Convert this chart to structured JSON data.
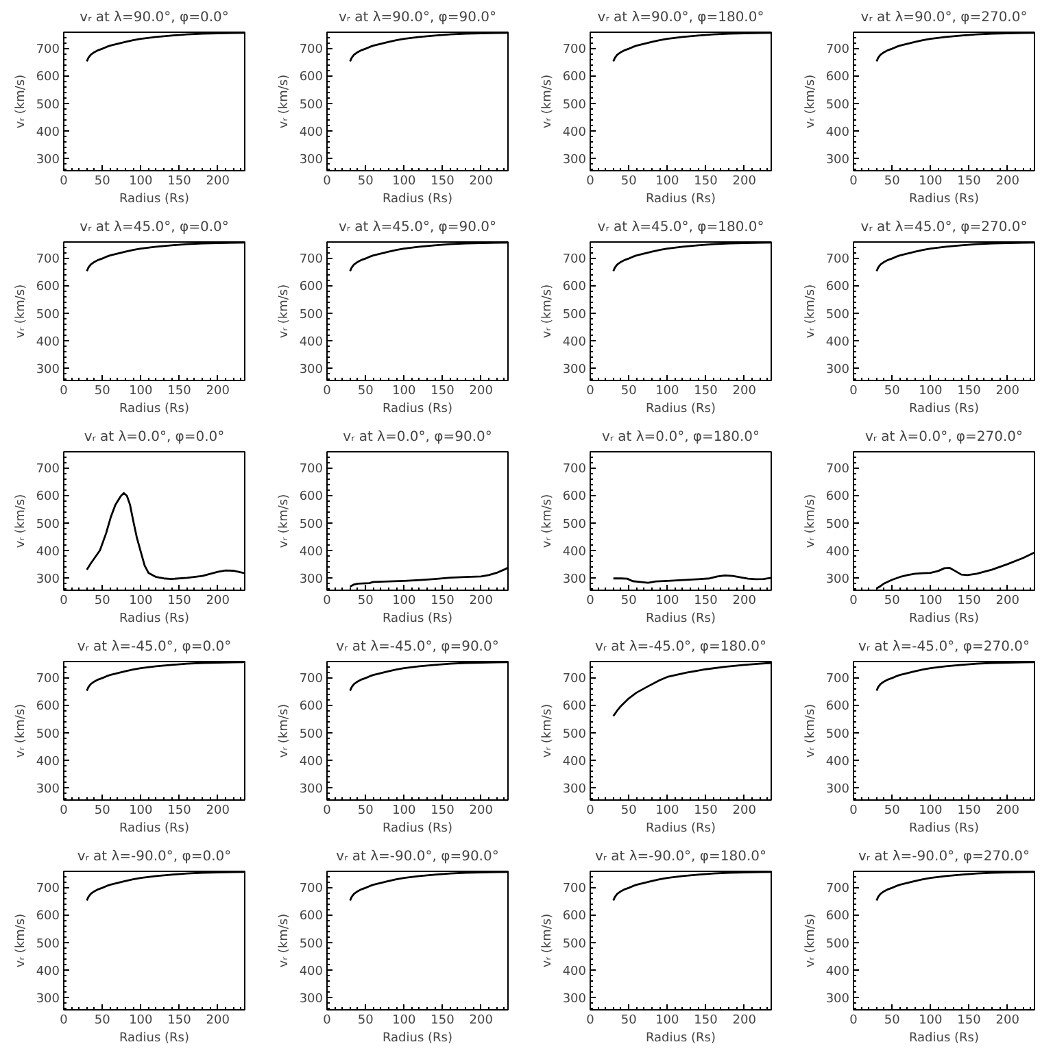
{
  "chart_data": [
    {
      "type": "line",
      "title": "vᵣ at λ=90.0°, φ=0.0°",
      "xlabel": "Radius (Rs)",
      "ylabel": "vᵣ (km/s)",
      "color": "#000000",
      "x": [
        30,
        32,
        35,
        40,
        45,
        50,
        55,
        60,
        70,
        80,
        90,
        100,
        120,
        140,
        160,
        180,
        200,
        220,
        235
      ],
      "values": [
        652,
        665,
        676,
        686,
        693,
        698,
        704,
        709,
        716,
        723,
        729,
        734,
        741,
        746,
        750,
        753,
        754,
        755,
        756
      ],
      "xlim": [
        0,
        235
      ],
      "ylim": [
        255,
        758
      ],
      "xticks": [
        0,
        50,
        100,
        150,
        200
      ],
      "yticks": [
        300,
        400,
        500,
        600,
        700
      ]
    },
    {
      "type": "line",
      "title": "vᵣ at λ=90.0°, φ=90.0°",
      "xlabel": "Radius (Rs)",
      "ylabel": "vᵣ (km/s)",
      "color": "#000000",
      "x": [
        30,
        32,
        35,
        40,
        45,
        50,
        55,
        60,
        70,
        80,
        90,
        100,
        120,
        140,
        160,
        180,
        200,
        220,
        235
      ],
      "values": [
        652,
        665,
        676,
        686,
        693,
        698,
        704,
        709,
        716,
        723,
        729,
        734,
        741,
        746,
        750,
        753,
        754,
        755,
        756
      ],
      "xlim": [
        0,
        235
      ],
      "ylim": [
        255,
        758
      ],
      "xticks": [
        0,
        50,
        100,
        150,
        200
      ],
      "yticks": [
        300,
        400,
        500,
        600,
        700
      ]
    },
    {
      "type": "line",
      "title": "vᵣ at λ=90.0°, φ=180.0°",
      "xlabel": "Radius (Rs)",
      "ylabel": "vᵣ (km/s)",
      "color": "#000000",
      "x": [
        30,
        32,
        35,
        40,
        45,
        50,
        55,
        60,
        70,
        80,
        90,
        100,
        120,
        140,
        160,
        180,
        200,
        220,
        235
      ],
      "values": [
        652,
        665,
        676,
        686,
        693,
        698,
        704,
        709,
        716,
        723,
        729,
        734,
        741,
        746,
        750,
        753,
        754,
        755,
        756
      ],
      "xlim": [
        0,
        235
      ],
      "ylim": [
        255,
        758
      ],
      "xticks": [
        0,
        50,
        100,
        150,
        200
      ],
      "yticks": [
        300,
        400,
        500,
        600,
        700
      ]
    },
    {
      "type": "line",
      "title": "vᵣ at λ=90.0°, φ=270.0°",
      "xlabel": "Radius (Rs)",
      "ylabel": "vᵣ (km/s)",
      "color": "#000000",
      "x": [
        30,
        32,
        35,
        40,
        45,
        50,
        55,
        60,
        70,
        80,
        90,
        100,
        120,
        140,
        160,
        180,
        200,
        220,
        235
      ],
      "values": [
        652,
        665,
        676,
        686,
        693,
        698,
        704,
        709,
        716,
        723,
        729,
        734,
        741,
        746,
        750,
        753,
        754,
        755,
        756
      ],
      "xlim": [
        0,
        235
      ],
      "ylim": [
        255,
        758
      ],
      "xticks": [
        0,
        50,
        100,
        150,
        200
      ],
      "yticks": [
        300,
        400,
        500,
        600,
        700
      ]
    },
    {
      "type": "line",
      "title": "vᵣ at λ=45.0°, φ=0.0°",
      "xlabel": "Radius (Rs)",
      "ylabel": "vᵣ (km/s)",
      "color": "#000000",
      "x": [
        30,
        32,
        35,
        40,
        45,
        50,
        55,
        60,
        70,
        80,
        90,
        100,
        120,
        140,
        160,
        180,
        200,
        220,
        235
      ],
      "values": [
        652,
        665,
        676,
        686,
        693,
        698,
        704,
        709,
        716,
        723,
        729,
        734,
        741,
        746,
        750,
        753,
        754,
        755,
        756
      ],
      "xlim": [
        0,
        235
      ],
      "ylim": [
        255,
        758
      ],
      "xticks": [
        0,
        50,
        100,
        150,
        200
      ],
      "yticks": [
        300,
        400,
        500,
        600,
        700
      ]
    },
    {
      "type": "line",
      "title": "vᵣ at λ=45.0°, φ=90.0°",
      "xlabel": "Radius (Rs)",
      "ylabel": "vᵣ (km/s)",
      "color": "#000000",
      "x": [
        30,
        32,
        35,
        40,
        45,
        50,
        55,
        60,
        70,
        80,
        90,
        100,
        120,
        140,
        160,
        180,
        200,
        220,
        235
      ],
      "values": [
        652,
        665,
        676,
        686,
        693,
        698,
        704,
        709,
        716,
        723,
        729,
        734,
        741,
        746,
        750,
        753,
        754,
        755,
        756
      ],
      "xlim": [
        0,
        235
      ],
      "ylim": [
        255,
        758
      ],
      "xticks": [
        0,
        50,
        100,
        150,
        200
      ],
      "yticks": [
        300,
        400,
        500,
        600,
        700
      ]
    },
    {
      "type": "line",
      "title": "vᵣ at λ=45.0°, φ=180.0°",
      "xlabel": "Radius (Rs)",
      "ylabel": "vᵣ (km/s)",
      "color": "#000000",
      "x": [
        30,
        32,
        35,
        40,
        45,
        50,
        55,
        60,
        70,
        80,
        90,
        100,
        120,
        140,
        160,
        180,
        200,
        220,
        235
      ],
      "values": [
        652,
        665,
        676,
        686,
        693,
        698,
        704,
        709,
        716,
        723,
        729,
        734,
        741,
        746,
        750,
        753,
        754,
        755,
        756
      ],
      "xlim": [
        0,
        235
      ],
      "ylim": [
        255,
        758
      ],
      "xticks": [
        0,
        50,
        100,
        150,
        200
      ],
      "yticks": [
        300,
        400,
        500,
        600,
        700
      ]
    },
    {
      "type": "line",
      "title": "vᵣ at λ=45.0°, φ=270.0°",
      "xlabel": "Radius (Rs)",
      "ylabel": "vᵣ (km/s)",
      "color": "#000000",
      "x": [
        30,
        32,
        35,
        40,
        45,
        50,
        55,
        60,
        70,
        80,
        90,
        100,
        120,
        140,
        160,
        180,
        200,
        220,
        235
      ],
      "values": [
        652,
        665,
        676,
        686,
        693,
        698,
        704,
        709,
        716,
        723,
        729,
        734,
        741,
        746,
        750,
        753,
        754,
        755,
        756
      ],
      "xlim": [
        0,
        235
      ],
      "ylim": [
        255,
        758
      ],
      "xticks": [
        0,
        50,
        100,
        150,
        200
      ],
      "yticks": [
        300,
        400,
        500,
        600,
        700
      ]
    },
    {
      "type": "line",
      "title": "vᵣ at λ=0.0°, φ=0.0°",
      "xlabel": "Radius (Rs)",
      "ylabel": "vᵣ (km/s)",
      "color": "#000000",
      "x": [
        30,
        35,
        40,
        47,
        55,
        61,
        67,
        74,
        78,
        82,
        86,
        90,
        95,
        100,
        105,
        110,
        120,
        130,
        140,
        160,
        180,
        200,
        210,
        220,
        235
      ],
      "values": [
        330,
        352,
        372,
        400,
        462,
        520,
        565,
        597,
        608,
        598,
        566,
        510,
        445,
        395,
        345,
        318,
        303,
        298,
        296,
        300,
        307,
        322,
        327,
        326,
        317
      ],
      "xlim": [
        0,
        235
      ],
      "ylim": [
        255,
        758
      ],
      "xticks": [
        0,
        50,
        100,
        150,
        200
      ],
      "yticks": [
        300,
        400,
        500,
        600,
        700
      ]
    },
    {
      "type": "line",
      "title": "vᵣ at λ=0.0°, φ=90.0°",
      "xlabel": "Radius (Rs)",
      "ylabel": "vᵣ (km/s)",
      "color": "#000000",
      "x": [
        30,
        35,
        40,
        55,
        60,
        80,
        100,
        120,
        140,
        160,
        180,
        200,
        210,
        220,
        230,
        235
      ],
      "values": [
        268,
        276,
        279,
        281,
        285,
        287,
        289,
        292,
        296,
        301,
        303,
        305,
        310,
        318,
        330,
        337
      ],
      "xlim": [
        0,
        235
      ],
      "ylim": [
        255,
        758
      ],
      "xticks": [
        0,
        50,
        100,
        150,
        200
      ],
      "yticks": [
        300,
        400,
        500,
        600,
        700
      ]
    },
    {
      "type": "line",
      "title": "vᵣ at λ=0.0°, φ=180.0°",
      "xlabel": "Radius (Rs)",
      "ylabel": "vᵣ (km/s)",
      "color": "#000000",
      "x": [
        30,
        40,
        48,
        55,
        65,
        75,
        85,
        100,
        120,
        140,
        155,
        165,
        175,
        185,
        195,
        205,
        215,
        225,
        235
      ],
      "values": [
        298,
        298,
        297,
        288,
        285,
        282,
        287,
        289,
        292,
        295,
        298,
        305,
        309,
        307,
        302,
        297,
        295,
        296,
        300
      ],
      "xlim": [
        0,
        235
      ],
      "ylim": [
        255,
        758
      ],
      "xticks": [
        0,
        50,
        100,
        150,
        200
      ],
      "yticks": [
        300,
        400,
        500,
        600,
        700
      ]
    },
    {
      "type": "line",
      "title": "vᵣ at λ=0.0°, φ=270.0°",
      "xlabel": "Radius (Rs)",
      "ylabel": "vᵣ (km/s)",
      "color": "#000000",
      "x": [
        30,
        35,
        40,
        50,
        60,
        70,
        80,
        90,
        100,
        110,
        118,
        125,
        132,
        140,
        148,
        160,
        180,
        200,
        220,
        235
      ],
      "values": [
        262,
        270,
        280,
        293,
        303,
        310,
        315,
        317,
        318,
        325,
        335,
        336,
        325,
        312,
        310,
        315,
        330,
        350,
        372,
        392
      ],
      "xlim": [
        0,
        235
      ],
      "ylim": [
        255,
        758
      ],
      "xticks": [
        0,
        50,
        100,
        150,
        200
      ],
      "yticks": [
        300,
        400,
        500,
        600,
        700
      ]
    },
    {
      "type": "line",
      "title": "vᵣ at λ=-45.0°, φ=0.0°",
      "xlabel": "Radius (Rs)",
      "ylabel": "vᵣ (km/s)",
      "color": "#000000",
      "x": [
        30,
        32,
        35,
        40,
        45,
        50,
        55,
        60,
        70,
        80,
        90,
        100,
        120,
        140,
        160,
        180,
        200,
        220,
        235
      ],
      "values": [
        652,
        665,
        676,
        686,
        693,
        698,
        704,
        709,
        716,
        723,
        729,
        734,
        741,
        746,
        750,
        753,
        754,
        755,
        756
      ],
      "xlim": [
        0,
        235
      ],
      "ylim": [
        255,
        758
      ],
      "xticks": [
        0,
        50,
        100,
        150,
        200
      ],
      "yticks": [
        300,
        400,
        500,
        600,
        700
      ]
    },
    {
      "type": "line",
      "title": "vᵣ at λ=-45.0°, φ=90.0°",
      "xlabel": "Radius (Rs)",
      "ylabel": "vᵣ (km/s)",
      "color": "#000000",
      "x": [
        30,
        32,
        35,
        40,
        45,
        50,
        55,
        60,
        70,
        80,
        90,
        100,
        120,
        140,
        160,
        180,
        200,
        220,
        235
      ],
      "values": [
        652,
        665,
        676,
        686,
        693,
        698,
        704,
        709,
        716,
        723,
        729,
        734,
        741,
        746,
        750,
        753,
        754,
        755,
        756
      ],
      "xlim": [
        0,
        235
      ],
      "ylim": [
        255,
        758
      ],
      "xticks": [
        0,
        50,
        100,
        150,
        200
      ],
      "yticks": [
        300,
        400,
        500,
        600,
        700
      ]
    },
    {
      "type": "line",
      "title": "vᵣ at λ=-45.0°, φ=180.0°",
      "xlabel": "Radius (Rs)",
      "ylabel": "vᵣ (km/s)",
      "color": "#000000",
      "x": [
        30,
        35,
        40,
        50,
        60,
        75,
        90,
        100,
        125,
        150,
        175,
        200,
        220,
        235
      ],
      "values": [
        560,
        580,
        597,
        624,
        645,
        668,
        690,
        702,
        718,
        730,
        739,
        746,
        750,
        753
      ],
      "xlim": [
        0,
        235
      ],
      "ylim": [
        255,
        758
      ],
      "xticks": [
        0,
        50,
        100,
        150,
        200
      ],
      "yticks": [
        300,
        400,
        500,
        600,
        700
      ]
    },
    {
      "type": "line",
      "title": "vᵣ at λ=-45.0°, φ=270.0°",
      "xlabel": "Radius (Rs)",
      "ylabel": "vᵣ (km/s)",
      "color": "#000000",
      "x": [
        30,
        32,
        35,
        40,
        45,
        50,
        55,
        60,
        70,
        80,
        90,
        100,
        120,
        140,
        160,
        180,
        200,
        220,
        235
      ],
      "values": [
        652,
        665,
        676,
        686,
        693,
        698,
        704,
        709,
        716,
        723,
        729,
        734,
        741,
        746,
        750,
        753,
        754,
        755,
        756
      ],
      "xlim": [
        0,
        235
      ],
      "ylim": [
        255,
        758
      ],
      "xticks": [
        0,
        50,
        100,
        150,
        200
      ],
      "yticks": [
        300,
        400,
        500,
        600,
        700
      ]
    },
    {
      "type": "line",
      "title": "vᵣ at λ=-90.0°, φ=0.0°",
      "xlabel": "Radius (Rs)",
      "ylabel": "vᵣ (km/s)",
      "color": "#000000",
      "x": [
        30,
        32,
        35,
        40,
        45,
        50,
        55,
        60,
        70,
        80,
        90,
        100,
        120,
        140,
        160,
        180,
        200,
        220,
        235
      ],
      "values": [
        652,
        665,
        676,
        686,
        693,
        698,
        704,
        709,
        716,
        723,
        729,
        734,
        741,
        746,
        750,
        753,
        754,
        755,
        756
      ],
      "xlim": [
        0,
        235
      ],
      "ylim": [
        255,
        758
      ],
      "xticks": [
        0,
        50,
        100,
        150,
        200
      ],
      "yticks": [
        300,
        400,
        500,
        600,
        700
      ]
    },
    {
      "type": "line",
      "title": "vᵣ at λ=-90.0°, φ=90.0°",
      "xlabel": "Radius (Rs)",
      "ylabel": "vᵣ (km/s)",
      "color": "#000000",
      "x": [
        30,
        32,
        35,
        40,
        45,
        50,
        55,
        60,
        70,
        80,
        90,
        100,
        120,
        140,
        160,
        180,
        200,
        220,
        235
      ],
      "values": [
        652,
        665,
        676,
        686,
        693,
        698,
        704,
        709,
        716,
        723,
        729,
        734,
        741,
        746,
        750,
        753,
        754,
        755,
        756
      ],
      "xlim": [
        0,
        235
      ],
      "ylim": [
        255,
        758
      ],
      "xticks": [
        0,
        50,
        100,
        150,
        200
      ],
      "yticks": [
        300,
        400,
        500,
        600,
        700
      ]
    },
    {
      "type": "line",
      "title": "vᵣ at λ=-90.0°, φ=180.0°",
      "xlabel": "Radius (Rs)",
      "ylabel": "vᵣ (km/s)",
      "color": "#000000",
      "x": [
        30,
        32,
        35,
        40,
        45,
        50,
        55,
        60,
        70,
        80,
        90,
        100,
        120,
        140,
        160,
        180,
        200,
        220,
        235
      ],
      "values": [
        652,
        665,
        676,
        686,
        693,
        698,
        704,
        709,
        716,
        723,
        729,
        734,
        741,
        746,
        750,
        753,
        754,
        755,
        756
      ],
      "xlim": [
        0,
        235
      ],
      "ylim": [
        255,
        758
      ],
      "xticks": [
        0,
        50,
        100,
        150,
        200
      ],
      "yticks": [
        300,
        400,
        500,
        600,
        700
      ]
    },
    {
      "type": "line",
      "title": "vᵣ at λ=-90.0°, φ=270.0°",
      "xlabel": "Radius (Rs)",
      "ylabel": "vᵣ (km/s)",
      "color": "#000000",
      "x": [
        30,
        32,
        35,
        40,
        45,
        50,
        55,
        60,
        70,
        80,
        90,
        100,
        120,
        140,
        160,
        180,
        200,
        220,
        235
      ],
      "values": [
        652,
        665,
        676,
        686,
        693,
        698,
        704,
        709,
        716,
        723,
        729,
        734,
        741,
        746,
        750,
        753,
        754,
        755,
        756
      ],
      "xlim": [
        0,
        235
      ],
      "ylim": [
        255,
        758
      ],
      "xticks": [
        0,
        50,
        100,
        150,
        200
      ],
      "yticks": [
        300,
        400,
        500,
        600,
        700
      ]
    }
  ]
}
